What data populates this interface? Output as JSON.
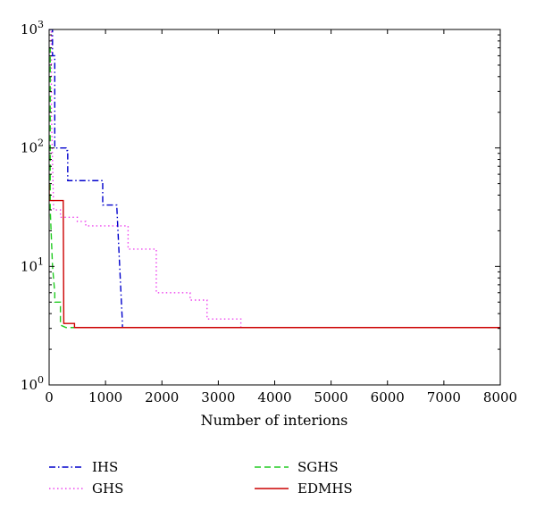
{
  "chart_data": {
    "type": "line",
    "xlabel": "Number of interions",
    "ylabel": "",
    "title": "",
    "xlim": [
      0,
      8000
    ],
    "ylim": [
      1,
      1000
    ],
    "y_scale": "log",
    "x_ticks": [
      0,
      1000,
      2000,
      3000,
      4000,
      5000,
      6000,
      7000,
      8000
    ],
    "x_tick_labels": [
      "0",
      "1000",
      "2000",
      "3000",
      "4000",
      "5000",
      "6000",
      "7000",
      "8000"
    ],
    "y_ticks": [
      1,
      10,
      100,
      1000
    ],
    "y_tick_labels": [
      {
        "base": "10",
        "exp": "0"
      },
      {
        "base": "10",
        "exp": "1"
      },
      {
        "base": "10",
        "exp": "2"
      },
      {
        "base": "10",
        "exp": "3"
      }
    ],
    "grid": false,
    "legend_position": "bottom",
    "series": [
      {
        "name": "IHS",
        "color": "#0000cc",
        "dash": "dashdot",
        "points": [
          [
            0,
            1000
          ],
          [
            60,
            1000
          ],
          [
            60,
            600
          ],
          [
            100,
            600
          ],
          [
            100,
            100
          ],
          [
            300,
            100
          ],
          [
            300,
            95
          ],
          [
            330,
            95
          ],
          [
            330,
            53
          ],
          [
            950,
            53
          ],
          [
            950,
            33
          ],
          [
            1200,
            33
          ],
          [
            1200,
            32
          ],
          [
            1300,
            3.3
          ],
          [
            1300,
            3.05
          ],
          [
            8000,
            3.05
          ]
        ]
      },
      {
        "name": "GHS",
        "color": "#ee44ee",
        "dash": "dotted",
        "points": [
          [
            0,
            1000
          ],
          [
            40,
            1000
          ],
          [
            40,
            200
          ],
          [
            80,
            30
          ],
          [
            200,
            30
          ],
          [
            200,
            26
          ],
          [
            500,
            26
          ],
          [
            500,
            24
          ],
          [
            650,
            24
          ],
          [
            650,
            22
          ],
          [
            1400,
            22
          ],
          [
            1400,
            14
          ],
          [
            1900,
            14
          ],
          [
            1900,
            6
          ],
          [
            2500,
            6
          ],
          [
            2500,
            5.2
          ],
          [
            2800,
            5.2
          ],
          [
            2800,
            3.6
          ],
          [
            3400,
            3.6
          ],
          [
            3400,
            3.05
          ],
          [
            8000,
            3.05
          ]
        ]
      },
      {
        "name": "SGHS",
        "color": "#22cc22",
        "dash": "dashed",
        "points": [
          [
            0,
            700
          ],
          [
            20,
            700
          ],
          [
            20,
            30
          ],
          [
            60,
            10
          ],
          [
            100,
            6
          ],
          [
            100,
            5
          ],
          [
            200,
            5
          ],
          [
            200,
            3.2
          ],
          [
            300,
            3.05
          ],
          [
            8000,
            3.05
          ]
        ]
      },
      {
        "name": "EDMHS",
        "color": "#cc0000",
        "dash": "solid",
        "points": [
          [
            0,
            50
          ],
          [
            0,
            36
          ],
          [
            250,
            36
          ],
          [
            260,
            3.3
          ],
          [
            450,
            3.3
          ],
          [
            450,
            3.05
          ],
          [
            8000,
            3.05
          ]
        ]
      }
    ]
  }
}
